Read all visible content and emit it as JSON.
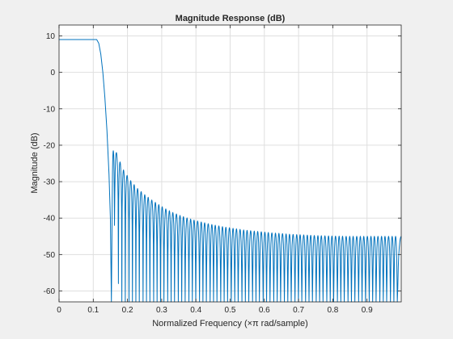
{
  "chart_data": {
    "type": "line",
    "title": "Magnitude Response (dB)",
    "xlabel": "Normalized Frequency (×π rad/sample)",
    "ylabel": "Magnitude (dB)",
    "xlim": [
      0,
      1
    ],
    "ylim": [
      -63,
      13
    ],
    "xticks": [
      0,
      0.1,
      0.2,
      0.3,
      0.4,
      0.5,
      0.6,
      0.7,
      0.8,
      0.9
    ],
    "xtick_labels": [
      "0",
      "0.1",
      "0.2",
      "0.3",
      "0.4",
      "0.5",
      "0.6",
      "0.7",
      "0.8",
      "0.9"
    ],
    "yticks": [
      10,
      0,
      -10,
      -20,
      -30,
      -40,
      -50,
      -60
    ],
    "ytick_labels": [
      "10",
      "0",
      "-10",
      "-20",
      "-30",
      "-40",
      "-50",
      "-60"
    ],
    "grid": true,
    "line_color": "#0072bd",
    "passband": {
      "x_end": 0.11,
      "level_db": 9
    },
    "transition": [
      [
        0.11,
        9
      ],
      [
        0.116,
        8
      ],
      [
        0.122,
        5
      ],
      [
        0.128,
        0
      ],
      [
        0.134,
        -7
      ],
      [
        0.14,
        -16
      ],
      [
        0.146,
        -28
      ],
      [
        0.15,
        -40
      ],
      [
        0.153,
        -63
      ]
    ],
    "nulls": [
      0.155,
      0.162,
      0.1735,
      0.1835,
      0.1935,
      0.2045,
      0.2145,
      0.2245,
      0.2345,
      0.2455,
      0.2555,
      0.2655,
      0.2765,
      0.2865,
      0.2965,
      0.3065,
      0.3175,
      0.3275,
      0.3375,
      0.3485,
      0.3585,
      0.3685,
      0.3795,
      0.3895,
      0.3995,
      0.4105,
      0.4205,
      0.4305,
      0.4415,
      0.4515,
      0.4615,
      0.4725,
      0.4825,
      0.4925,
      0.5035,
      0.5135,
      0.5235,
      0.5345,
      0.5445,
      0.5545,
      0.5655,
      0.5755,
      0.5855,
      0.5965,
      0.6065,
      0.6165,
      0.6275,
      0.6375,
      0.6475,
      0.6585,
      0.6685,
      0.6785,
      0.6895,
      0.6995,
      0.7095,
      0.7205,
      0.7305,
      0.7405,
      0.7515,
      0.7615,
      0.7715,
      0.7825,
      0.7925,
      0.8025,
      0.8135,
      0.8235,
      0.8335,
      0.8445,
      0.8545,
      0.8645,
      0.8755,
      0.8855,
      0.8955,
      0.9065,
      0.9165,
      0.9265,
      0.9375,
      0.9475,
      0.9575,
      0.9685,
      0.9785,
      0.9885
    ],
    "null_depths_db": [
      -42,
      -58
    ],
    "sidelobe_peaks": [
      [
        0.1655,
        -21.5
      ],
      [
        0.1865,
        -26.5
      ],
      [
        0.2075,
        -29.5
      ],
      [
        0.2285,
        -31.8
      ],
      [
        0.2495,
        -33.5
      ],
      [
        0.2705,
        -35
      ],
      [
        0.2915,
        -36.3
      ],
      [
        0.3125,
        -37.5
      ],
      [
        0.3335,
        -38.5
      ],
      [
        0.3545,
        -39.3
      ],
      [
        0.3755,
        -40
      ],
      [
        0.3965,
        -40.6
      ],
      [
        0.4175,
        -41.1
      ],
      [
        0.4385,
        -41.6
      ],
      [
        0.4595,
        -42
      ],
      [
        0.4805,
        -42.4
      ],
      [
        0.5015,
        -42.7
      ],
      [
        0.5225,
        -43
      ],
      [
        0.5435,
        -43.3
      ],
      [
        0.5645,
        -43.5
      ],
      [
        0.5855,
        -43.7
      ],
      [
        0.6065,
        -43.9
      ],
      [
        0.6275,
        -44.1
      ],
      [
        0.6485,
        -44.2
      ],
      [
        0.6695,
        -44.4
      ],
      [
        0.6905,
        -44.5
      ],
      [
        0.7115,
        -44.6
      ],
      [
        0.7325,
        -44.7
      ],
      [
        0.7535,
        -44.8
      ],
      [
        0.7745,
        -44.85
      ],
      [
        0.7955,
        -44.9
      ],
      [
        0.8165,
        -44.95
      ],
      [
        0.8375,
        -45
      ],
      [
        0.8585,
        -45
      ],
      [
        0.8795,
        -45
      ],
      [
        0.9005,
        -45
      ],
      [
        0.9215,
        -45
      ],
      [
        0.9425,
        -45
      ],
      [
        0.9635,
        -45
      ],
      [
        0.9845,
        -45
      ]
    ]
  }
}
